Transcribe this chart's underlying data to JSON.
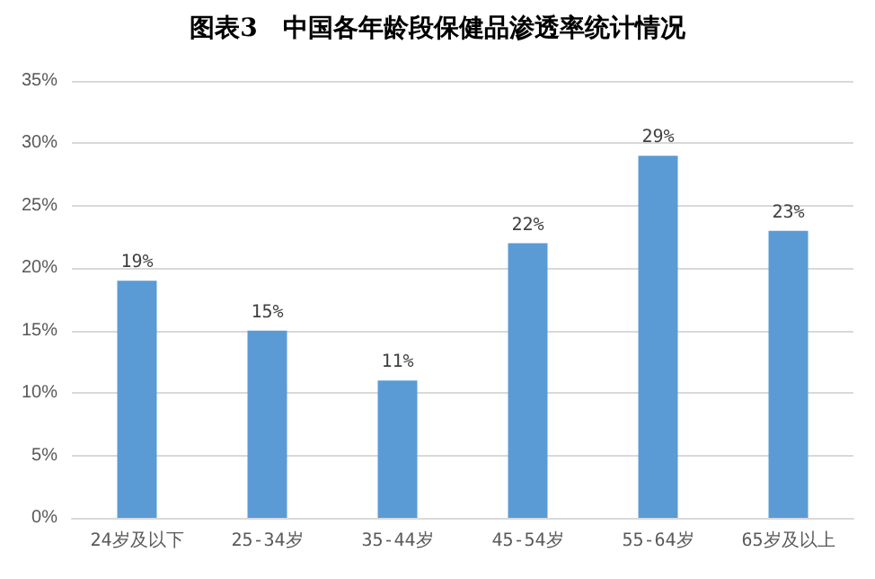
{
  "chart_data": {
    "type": "bar",
    "title": "图表3　中国各年龄段保健品渗透率统计情况",
    "categories": [
      "24岁及以下",
      "25-34岁",
      "35-44岁",
      "45-54岁",
      "55-64岁",
      "65岁及以上"
    ],
    "values": [
      19,
      15,
      11,
      22,
      29,
      23
    ],
    "value_labels": [
      "19%",
      "15%",
      "11%",
      "22%",
      "29%",
      "23%"
    ],
    "color": "#5b9bd5",
    "ylim": [
      0,
      35
    ],
    "yticks": [
      {
        "value": 0,
        "label": "0%"
      },
      {
        "value": 5,
        "label": "5%"
      },
      {
        "value": 10,
        "label": "10%"
      },
      {
        "value": 15,
        "label": "15%"
      },
      {
        "value": 20,
        "label": "20%"
      },
      {
        "value": 25,
        "label": "25%"
      },
      {
        "value": 30,
        "label": "30%"
      },
      {
        "value": 35,
        "label": "35%"
      }
    ],
    "grid": "y"
  }
}
